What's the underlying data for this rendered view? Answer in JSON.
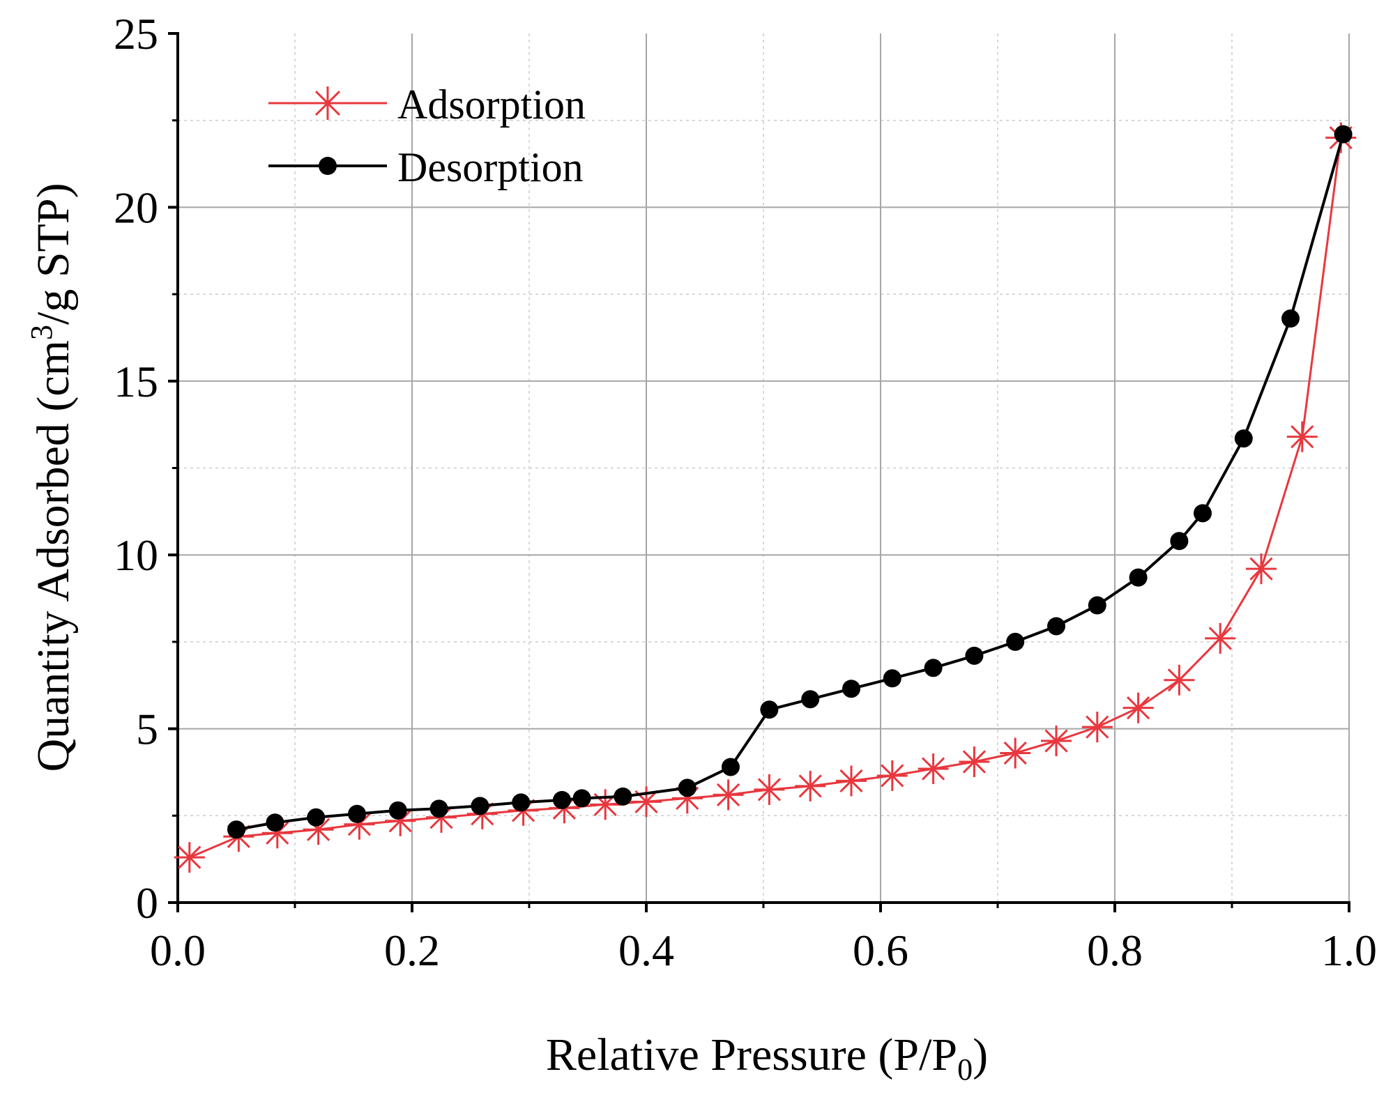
{
  "chart_data": {
    "type": "line",
    "title": "",
    "xlabel": "Relative Pressure (P/P0)",
    "xlabel_main": "Relative Pressure (P/P",
    "xlabel_sub": "0",
    "xlabel_close": ")",
    "ylabel": "Quantity Adsorbed (cm3/g STP)",
    "ylabel_main": "Quantity Adsorbed (cm",
    "ylabel_sup": "3",
    "ylabel_rest": "/g STP)",
    "xlim": [
      0.0,
      1.0
    ],
    "ylim": [
      0,
      25
    ],
    "x_ticks": [
      "0.0",
      "0.2",
      "0.4",
      "0.6",
      "0.8",
      "1.0"
    ],
    "y_ticks": [
      "0",
      "5",
      "10",
      "15",
      "20",
      "25"
    ],
    "grid": true,
    "legend_position": "top-left",
    "series": [
      {
        "name": "Adsorption",
        "color": "#e8373e",
        "marker": "asterisk",
        "x": [
          0.01,
          0.052,
          0.085,
          0.12,
          0.155,
          0.19,
          0.225,
          0.26,
          0.295,
          0.33,
          0.365,
          0.4,
          0.435,
          0.47,
          0.505,
          0.54,
          0.575,
          0.61,
          0.645,
          0.68,
          0.715,
          0.75,
          0.785,
          0.82,
          0.855,
          0.89,
          0.925,
          0.96,
          0.993
        ],
        "y": [
          1.3,
          1.9,
          2.0,
          2.1,
          2.25,
          2.35,
          2.45,
          2.55,
          2.65,
          2.72,
          2.82,
          2.9,
          3.0,
          3.1,
          3.25,
          3.35,
          3.5,
          3.65,
          3.85,
          4.05,
          4.3,
          4.65,
          5.05,
          5.6,
          6.4,
          7.6,
          9.6,
          13.4,
          22.0
        ]
      },
      {
        "name": "Desorption",
        "color": "#000000",
        "marker": "circle",
        "x": [
          0.05,
          0.083,
          0.118,
          0.153,
          0.188,
          0.223,
          0.258,
          0.293,
          0.328,
          0.345,
          0.38,
          0.435,
          0.472,
          0.505,
          0.54,
          0.575,
          0.61,
          0.645,
          0.68,
          0.715,
          0.75,
          0.785,
          0.82,
          0.855,
          0.875,
          0.91,
          0.95,
          0.995
        ],
        "y": [
          2.1,
          2.3,
          2.45,
          2.55,
          2.65,
          2.7,
          2.78,
          2.88,
          2.95,
          3.0,
          3.05,
          3.3,
          3.9,
          5.55,
          5.85,
          6.15,
          6.45,
          6.75,
          7.1,
          7.5,
          7.95,
          8.55,
          9.35,
          10.4,
          11.2,
          13.35,
          16.8,
          22.1
        ]
      }
    ]
  }
}
